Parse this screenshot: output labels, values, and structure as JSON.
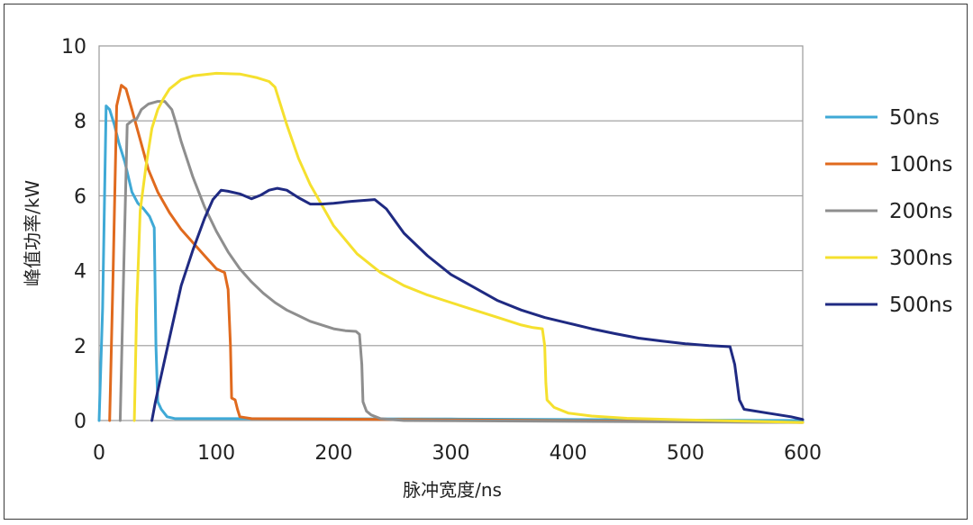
{
  "chart_data": {
    "type": "line",
    "xlabel": "脉冲宽度/ns",
    "ylabel": "峰值功率/kW",
    "xlim": [
      0,
      600
    ],
    "ylim": [
      0,
      10
    ],
    "xticks": [
      "0",
      "100",
      "200",
      "300",
      "400",
      "500",
      "600"
    ],
    "yticks": [
      "0",
      "2",
      "4",
      "6",
      "8",
      "10"
    ],
    "grid": "horizontal",
    "legend_position": "right",
    "series": [
      {
        "name": "50ns",
        "color": "#3fa9d6",
        "points": [
          [
            0,
            0
          ],
          [
            3,
            3
          ],
          [
            6,
            8.4
          ],
          [
            9,
            8.3
          ],
          [
            13,
            7.9
          ],
          [
            17,
            7.4
          ],
          [
            22,
            6.9
          ],
          [
            28,
            6.1
          ],
          [
            33,
            5.8
          ],
          [
            38,
            5.65
          ],
          [
            43,
            5.45
          ],
          [
            47,
            5.15
          ],
          [
            48.5,
            2.0
          ],
          [
            50,
            0.5
          ],
          [
            53,
            0.3
          ],
          [
            58,
            0.1
          ],
          [
            65,
            0.05
          ],
          [
            100,
            0.05
          ],
          [
            300,
            0.04
          ],
          [
            600,
            0.0
          ]
        ]
      },
      {
        "name": "100ns",
        "color": "#e06a1e",
        "points": [
          [
            9,
            0
          ],
          [
            12,
            4
          ],
          [
            15,
            8.4
          ],
          [
            19,
            8.95
          ],
          [
            23,
            8.85
          ],
          [
            28,
            8.3
          ],
          [
            35,
            7.5
          ],
          [
            42,
            6.7
          ],
          [
            50,
            6.1
          ],
          [
            60,
            5.55
          ],
          [
            70,
            5.1
          ],
          [
            80,
            4.75
          ],
          [
            90,
            4.4
          ],
          [
            100,
            4.05
          ],
          [
            107,
            3.95
          ],
          [
            110,
            3.5
          ],
          [
            112,
            2.0
          ],
          [
            113,
            0.6
          ],
          [
            116,
            0.55
          ],
          [
            118,
            0.3
          ],
          [
            120,
            0.1
          ],
          [
            130,
            0.05
          ],
          [
            300,
            0.02
          ],
          [
            600,
            -0.05
          ]
        ]
      },
      {
        "name": "200ns",
        "color": "#8e8e8e",
        "points": [
          [
            18,
            0
          ],
          [
            21,
            4
          ],
          [
            24,
            7.9
          ],
          [
            28,
            8.0
          ],
          [
            32,
            8.05
          ],
          [
            36,
            8.3
          ],
          [
            42,
            8.45
          ],
          [
            50,
            8.52
          ],
          [
            56,
            8.52
          ],
          [
            62,
            8.3
          ],
          [
            66,
            7.9
          ],
          [
            70,
            7.45
          ],
          [
            80,
            6.5
          ],
          [
            90,
            5.7
          ],
          [
            100,
            5.05
          ],
          [
            110,
            4.5
          ],
          [
            120,
            4.05
          ],
          [
            130,
            3.7
          ],
          [
            140,
            3.4
          ],
          [
            150,
            3.15
          ],
          [
            160,
            2.95
          ],
          [
            170,
            2.8
          ],
          [
            180,
            2.65
          ],
          [
            190,
            2.55
          ],
          [
            200,
            2.45
          ],
          [
            210,
            2.4
          ],
          [
            219,
            2.38
          ],
          [
            222,
            2.3
          ],
          [
            224,
            1.5
          ],
          [
            225,
            0.5
          ],
          [
            228,
            0.25
          ],
          [
            232,
            0.15
          ],
          [
            240,
            0.05
          ],
          [
            260,
            0.0
          ],
          [
            600,
            -0.05
          ]
        ]
      },
      {
        "name": "300ns",
        "color": "#f5e02e",
        "points": [
          [
            30,
            0
          ],
          [
            32,
            3
          ],
          [
            35,
            5.6
          ],
          [
            40,
            6.8
          ],
          [
            45,
            7.8
          ],
          [
            50,
            8.3
          ],
          [
            55,
            8.6
          ],
          [
            60,
            8.85
          ],
          [
            70,
            9.1
          ],
          [
            80,
            9.2
          ],
          [
            100,
            9.27
          ],
          [
            120,
            9.25
          ],
          [
            135,
            9.15
          ],
          [
            145,
            9.05
          ],
          [
            150,
            8.9
          ],
          [
            160,
            7.9
          ],
          [
            170,
            7.0
          ],
          [
            180,
            6.3
          ],
          [
            200,
            5.2
          ],
          [
            220,
            4.45
          ],
          [
            240,
            3.95
          ],
          [
            260,
            3.6
          ],
          [
            280,
            3.35
          ],
          [
            300,
            3.15
          ],
          [
            320,
            2.95
          ],
          [
            340,
            2.75
          ],
          [
            360,
            2.55
          ],
          [
            370,
            2.48
          ],
          [
            378,
            2.45
          ],
          [
            380,
            2.0
          ],
          [
            381,
            1.0
          ],
          [
            382,
            0.55
          ],
          [
            388,
            0.35
          ],
          [
            400,
            0.2
          ],
          [
            420,
            0.12
          ],
          [
            450,
            0.06
          ],
          [
            500,
            0.02
          ],
          [
            600,
            -0.05
          ]
        ]
      },
      {
        "name": "500ns",
        "color": "#1f2a82",
        "points": [
          [
            45,
            0
          ],
          [
            48,
            0.5
          ],
          [
            60,
            2.2
          ],
          [
            70,
            3.6
          ],
          [
            80,
            4.55
          ],
          [
            90,
            5.4
          ],
          [
            97,
            5.9
          ],
          [
            104,
            6.15
          ],
          [
            110,
            6.12
          ],
          [
            120,
            6.05
          ],
          [
            130,
            5.92
          ],
          [
            138,
            6.02
          ],
          [
            145,
            6.15
          ],
          [
            152,
            6.2
          ],
          [
            160,
            6.15
          ],
          [
            170,
            5.95
          ],
          [
            180,
            5.78
          ],
          [
            190,
            5.78
          ],
          [
            200,
            5.8
          ],
          [
            215,
            5.85
          ],
          [
            235,
            5.9
          ],
          [
            245,
            5.65
          ],
          [
            260,
            5.0
          ],
          [
            280,
            4.4
          ],
          [
            300,
            3.9
          ],
          [
            320,
            3.55
          ],
          [
            340,
            3.2
          ],
          [
            360,
            2.95
          ],
          [
            380,
            2.75
          ],
          [
            400,
            2.6
          ],
          [
            420,
            2.45
          ],
          [
            440,
            2.32
          ],
          [
            460,
            2.2
          ],
          [
            480,
            2.12
          ],
          [
            500,
            2.05
          ],
          [
            520,
            2.0
          ],
          [
            538,
            1.97
          ],
          [
            542,
            1.5
          ],
          [
            546,
            0.55
          ],
          [
            550,
            0.3
          ],
          [
            570,
            0.2
          ],
          [
            590,
            0.1
          ],
          [
            600,
            0.03
          ]
        ]
      }
    ]
  }
}
